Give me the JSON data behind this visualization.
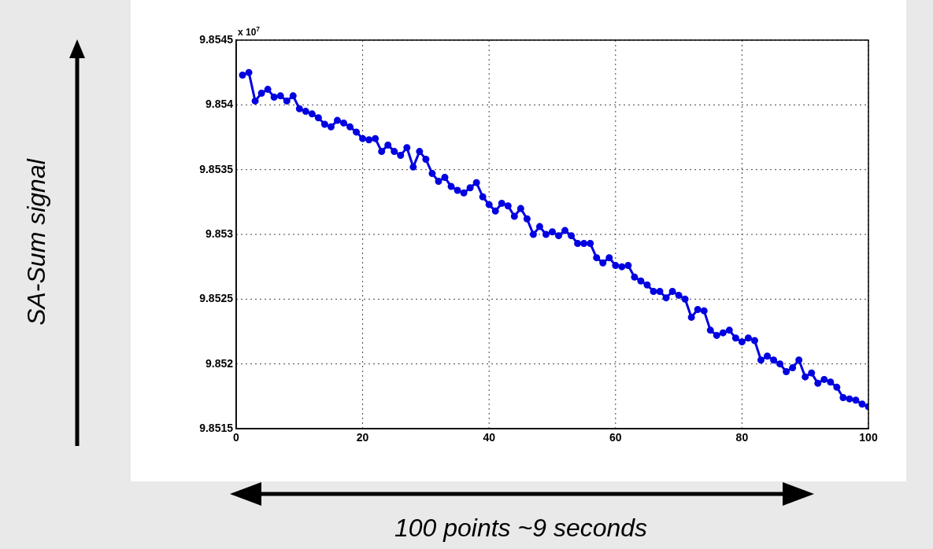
{
  "chart_data": {
    "type": "line",
    "xlabel": "100 points ~9 seconds",
    "annotations": [
      "x 10$^{7}$",
      "SA-Sum signal"
    ],
    "x": [
      1,
      2,
      3,
      4,
      5,
      6,
      7,
      8,
      9,
      10,
      11,
      12,
      13,
      14,
      15,
      16,
      17,
      18,
      19,
      20,
      21,
      22,
      23,
      24,
      25,
      26,
      27,
      28,
      29,
      30,
      31,
      32,
      33,
      34,
      35,
      36,
      37,
      38,
      39,
      40,
      41,
      42,
      43,
      44,
      45,
      46,
      47,
      48,
      49,
      50,
      51,
      52,
      53,
      54,
      55,
      56,
      57,
      58,
      59,
      60,
      61,
      62,
      63,
      64,
      65,
      66,
      67,
      68,
      69,
      70,
      71,
      72,
      73,
      74,
      75,
      76,
      77,
      78,
      79,
      80,
      81,
      82,
      83,
      84,
      85,
      86,
      87,
      88,
      89,
      90,
      91,
      92,
      93,
      94,
      95,
      96,
      97,
      98,
      99,
      100
    ],
    "series": [
      {
        "color": "#0000e0",
        "values": [
          9.85423,
          9.85425,
          9.85403,
          9.85409,
          9.85412,
          9.85406,
          9.85407,
          9.85403,
          9.85407,
          9.85397,
          9.85395,
          9.85393,
          9.8539,
          9.85385,
          9.85383,
          9.85388,
          9.85386,
          9.85383,
          9.85379,
          9.85374,
          9.85373,
          9.85374,
          9.85364,
          9.85369,
          9.85364,
          9.85361,
          9.85367,
          9.85352,
          9.85364,
          9.85358,
          9.85347,
          9.85341,
          9.85344,
          9.85337,
          9.85334,
          9.85332,
          9.85336,
          9.8534,
          9.85329,
          9.85323,
          9.85318,
          9.85324,
          9.85322,
          9.85314,
          9.8532,
          9.85312,
          9.853,
          9.85306,
          9.853,
          9.85302,
          9.85299,
          9.85303,
          9.85299,
          9.85293,
          9.85293,
          9.85293,
          9.85282,
          9.85278,
          9.85282,
          9.85276,
          9.85275,
          9.85276,
          9.85267,
          9.85264,
          9.85261,
          9.85256,
          9.85256,
          9.85251,
          9.85256,
          9.85253,
          9.8525,
          9.85236,
          9.85242,
          9.85241,
          9.85226,
          9.85222,
          9.85224,
          9.85226,
          9.8522,
          9.85217,
          9.8522,
          9.85218,
          9.85203,
          9.85206,
          9.85203,
          9.852,
          9.85194,
          9.85197,
          9.85203,
          9.8519,
          9.85193,
          9.85185,
          9.85188,
          9.85186,
          9.85182,
          9.85174,
          9.85173,
          9.85172,
          9.85169,
          9.85167
        ]
      }
    ],
    "xlim": [
      0,
      100
    ],
    "xticks": [
      0,
      20,
      40,
      60,
      80,
      100
    ],
    "ylim": [
      9.8515,
      9.8545
    ],
    "yticks": [
      9.8515,
      9.852,
      9.8525,
      9.853,
      9.8535,
      9.854,
      9.8545
    ],
    "grid": true,
    "legend": false,
    "marker": "circle",
    "line_style": "solid"
  }
}
